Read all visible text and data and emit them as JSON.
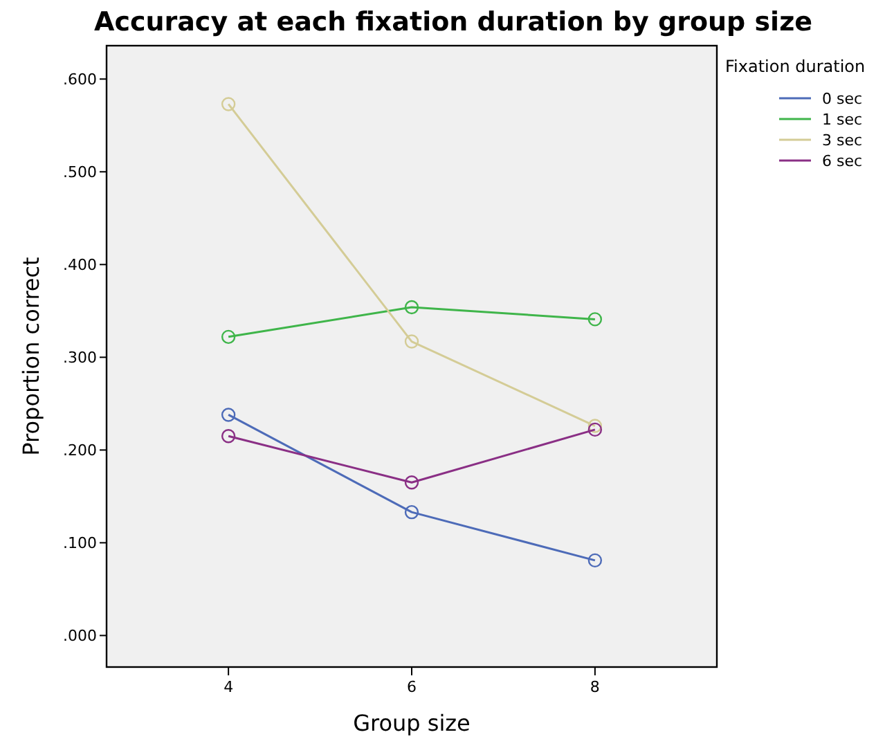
{
  "chart_data": {
    "type": "line",
    "title": "Accuracy at each fixation duration by group size",
    "xlabel": "Group size",
    "ylabel": "Proportion correct",
    "legend_title": "Fixation duration",
    "x": [
      4,
      6,
      8
    ],
    "xlim": [
      2.67,
      9.33
    ],
    "xticks": [
      4,
      6,
      8
    ],
    "ylim": [
      -0.034,
      0.636
    ],
    "yticks": [
      {
        "value": 0,
        "label": ".000"
      },
      {
        "value": 0.1,
        "label": ".100"
      },
      {
        "value": 0.2,
        "label": ".200"
      },
      {
        "value": 0.3,
        "label": ".300"
      },
      {
        "value": 0.4,
        "label": ".400"
      },
      {
        "value": 0.5,
        "label": ".500"
      },
      {
        "value": 0.6,
        "label": ".600"
      }
    ],
    "series": [
      {
        "name": "0 sec",
        "color": "#4d6bb8",
        "values": [
          0.238,
          0.133,
          0.081
        ]
      },
      {
        "name": "1 sec",
        "color": "#3fb54a",
        "values": [
          0.322,
          0.354,
          0.341
        ]
      },
      {
        "name": "3 sec",
        "color": "#d4cc96",
        "values": [
          0.573,
          0.317,
          0.226
        ]
      },
      {
        "name": "6 sec",
        "color": "#8a2f85",
        "values": [
          0.215,
          0.165,
          0.222
        ]
      }
    ],
    "marker": "circle",
    "line_style": "solid",
    "grid": false,
    "legend": "top right"
  }
}
